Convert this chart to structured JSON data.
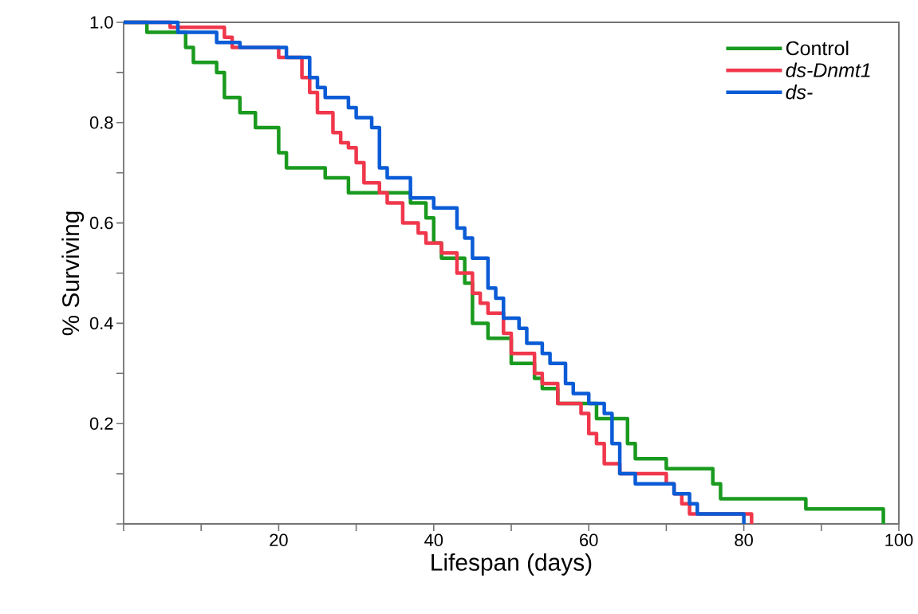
{
  "chart_data": {
    "type": "step",
    "xlabel": "Lifespan (days)",
    "ylabel": "% Surviving",
    "xlim": [
      0,
      100
    ],
    "ylim": [
      0,
      1
    ],
    "xticks": [
      {
        "value": 0,
        "label": null
      },
      {
        "value": 10,
        "label": null
      },
      20,
      {
        "value": 30,
        "label": null
      },
      40,
      {
        "value": 50,
        "label": null
      },
      60,
      {
        "value": 70,
        "label": null
      },
      80,
      {
        "value": 90,
        "label": null
      },
      100
    ],
    "yticks": [
      {
        "value": 0,
        "label": null
      },
      {
        "value": 0.1,
        "label": null
      },
      0.2,
      {
        "value": 0.3,
        "label": null
      },
      0.4,
      {
        "value": 0.5,
        "label": null
      },
      0.6,
      {
        "value": 0.7,
        "label": null
      },
      0.8,
      {
        "value": 0.9,
        "label": null
      },
      {
        "value": 1,
        "label": "1.0"
      }
    ],
    "legend": "top right",
    "marker": "none",
    "line_style": "solid",
    "series": [
      {
        "name": "Control",
        "color": "#1a9a1f",
        "x": [
          0,
          3,
          8,
          9,
          12,
          13,
          15,
          17,
          20,
          21,
          26,
          29,
          37,
          39,
          40,
          41,
          44,
          45,
          47,
          50,
          53,
          54,
          56,
          61,
          65,
          66,
          70,
          76,
          77,
          88,
          98
        ],
        "values": [
          1,
          0.98,
          0.95,
          0.92,
          0.9,
          0.85,
          0.82,
          0.79,
          0.74,
          0.71,
          0.69,
          0.66,
          0.64,
          0.61,
          0.56,
          0.53,
          0.48,
          0.4,
          0.37,
          0.32,
          0.29,
          0.27,
          0.24,
          0.21,
          0.16,
          0.13,
          0.11,
          0.08,
          0.05,
          0.03,
          0
        ]
      },
      {
        "name": "*ds-Dnmt1*",
        "color": "#f0374c",
        "x": [
          0,
          6,
          13,
          14,
          20,
          23,
          24,
          25,
          27,
          28,
          29,
          30,
          31,
          33,
          34,
          36,
          38,
          39,
          41,
          43,
          45,
          46,
          47,
          49,
          50,
          53,
          54,
          56,
          59,
          60,
          61,
          62,
          64,
          70,
          71,
          72,
          73,
          81
        ],
        "values": [
          1,
          0.99,
          0.97,
          0.95,
          0.93,
          0.89,
          0.86,
          0.82,
          0.78,
          0.76,
          0.75,
          0.72,
          0.68,
          0.66,
          0.64,
          0.6,
          0.58,
          0.56,
          0.54,
          0.5,
          0.46,
          0.44,
          0.42,
          0.38,
          0.34,
          0.3,
          0.28,
          0.24,
          0.22,
          0.18,
          0.16,
          0.12,
          0.1,
          0.08,
          0.06,
          0.04,
          0.02,
          0
        ]
      },
      {
        "name": "*ds-*",
        "color": "#0a5bd6",
        "x": [
          0,
          7,
          12,
          15,
          21,
          24,
          25,
          26,
          29,
          30,
          32,
          33,
          34,
          37,
          40,
          43,
          44,
          45,
          47,
          48,
          49,
          51,
          52,
          54,
          55,
          57,
          58,
          60,
          62,
          63,
          64,
          66,
          71,
          73,
          74,
          80
        ],
        "values": [
          1,
          0.98,
          0.96,
          0.95,
          0.93,
          0.89,
          0.87,
          0.85,
          0.83,
          0.81,
          0.79,
          0.71,
          0.69,
          0.65,
          0.63,
          0.59,
          0.57,
          0.53,
          0.47,
          0.45,
          0.41,
          0.39,
          0.36,
          0.34,
          0.32,
          0.28,
          0.26,
          0.24,
          0.22,
          0.16,
          0.1,
          0.08,
          0.06,
          0.04,
          0.02,
          0
        ]
      }
    ]
  }
}
